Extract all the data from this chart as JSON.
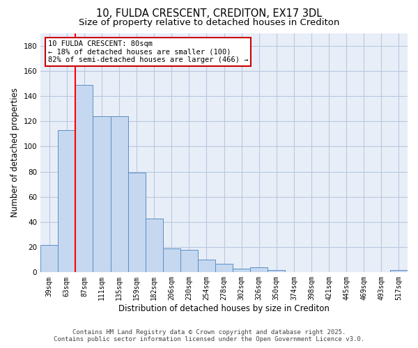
{
  "title": "10, FULDA CRESCENT, CREDITON, EX17 3DL",
  "subtitle": "Size of property relative to detached houses in Crediton",
  "xlabel": "Distribution of detached houses by size in Crediton",
  "ylabel": "Number of detached properties",
  "categories": [
    "39sqm",
    "63sqm",
    "87sqm",
    "111sqm",
    "135sqm",
    "159sqm",
    "182sqm",
    "206sqm",
    "230sqm",
    "254sqm",
    "278sqm",
    "302sqm",
    "326sqm",
    "350sqm",
    "374sqm",
    "398sqm",
    "421sqm",
    "445sqm",
    "469sqm",
    "493sqm",
    "517sqm"
  ],
  "values": [
    22,
    113,
    149,
    124,
    124,
    79,
    43,
    19,
    18,
    10,
    7,
    3,
    4,
    2,
    0,
    0,
    0,
    0,
    0,
    0,
    2
  ],
  "bar_color": "#c5d8f0",
  "bar_edge_color": "#5b8ec4",
  "plot_bg_color": "#e8eef8",
  "figure_bg_color": "#ffffff",
  "grid_color": "#b8c8e0",
  "red_line_x": 2.0,
  "annotation_text": "10 FULDA CRESCENT: 80sqm\n← 18% of detached houses are smaller (100)\n82% of semi-detached houses are larger (466) →",
  "annotation_box_facecolor": "#ffffff",
  "annotation_box_edgecolor": "#cc0000",
  "ylim": [
    0,
    190
  ],
  "yticks": [
    0,
    20,
    40,
    60,
    80,
    100,
    120,
    140,
    160,
    180
  ],
  "footer1": "Contains HM Land Registry data © Crown copyright and database right 2025.",
  "footer2": "Contains public sector information licensed under the Open Government Licence v3.0.",
  "title_fontsize": 10.5,
  "subtitle_fontsize": 9.5,
  "tick_fontsize": 7,
  "label_fontsize": 8.5,
  "footer_fontsize": 6.5
}
